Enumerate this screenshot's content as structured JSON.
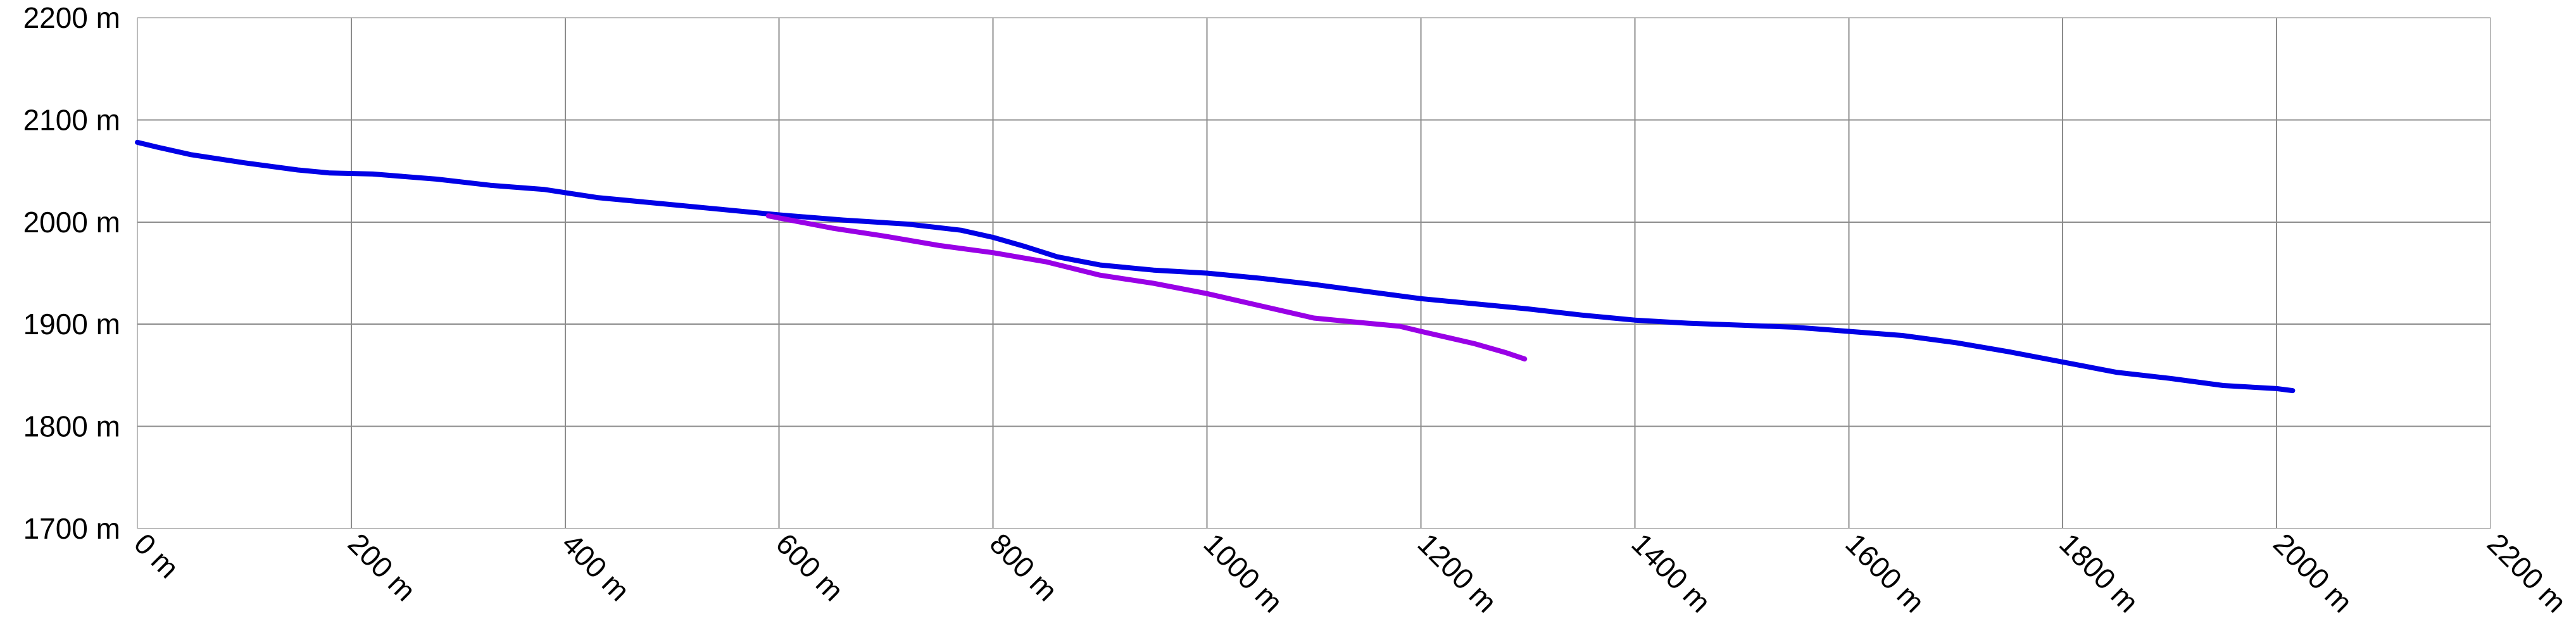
{
  "chart_data": {
    "type": "line",
    "title": "",
    "xlabel": "",
    "ylabel": "",
    "xlim": [
      0,
      2200
    ],
    "ylim": [
      1700,
      2200
    ],
    "x_ticks": [
      0,
      200,
      400,
      600,
      800,
      1000,
      1200,
      1400,
      1600,
      1800,
      2000,
      2200
    ],
    "y_ticks": [
      1700,
      1800,
      1900,
      2000,
      2100,
      2200
    ],
    "x_tick_labels": [
      "0 m",
      "200 m",
      "400 m",
      "600 m",
      "800 m",
      "1000 m",
      "1200 m",
      "1400 m",
      "1600 m",
      "1800 m",
      "2000 m",
      "2200 m"
    ],
    "y_tick_labels": [
      "1700 m",
      "1800 m",
      "1900 m",
      "2000 m",
      "2100 m",
      "2200 m"
    ],
    "grid": true,
    "legend": "none",
    "series": [
      {
        "color": "#0000e6",
        "points": [
          [
            0,
            2078
          ],
          [
            20,
            2073
          ],
          [
            50,
            2066
          ],
          [
            100,
            2058
          ],
          [
            150,
            2051
          ],
          [
            180,
            2048
          ],
          [
            220,
            2047
          ],
          [
            280,
            2042
          ],
          [
            330,
            2036
          ],
          [
            380,
            2032
          ],
          [
            430,
            2024
          ],
          [
            480,
            2019
          ],
          [
            540,
            2013
          ],
          [
            600,
            2007
          ],
          [
            660,
            2002
          ],
          [
            720,
            1998
          ],
          [
            770,
            1992
          ],
          [
            800,
            1985
          ],
          [
            830,
            1976
          ],
          [
            860,
            1966
          ],
          [
            900,
            1958
          ],
          [
            950,
            1953
          ],
          [
            1000,
            1950
          ],
          [
            1050,
            1945
          ],
          [
            1100,
            1939
          ],
          [
            1150,
            1932
          ],
          [
            1200,
            1925
          ],
          [
            1250,
            1920
          ],
          [
            1300,
            1915
          ],
          [
            1350,
            1909
          ],
          [
            1400,
            1904
          ],
          [
            1450,
            1901
          ],
          [
            1500,
            1899
          ],
          [
            1550,
            1897
          ],
          [
            1600,
            1893
          ],
          [
            1650,
            1889
          ],
          [
            1700,
            1882
          ],
          [
            1750,
            1873
          ],
          [
            1800,
            1863
          ],
          [
            1850,
            1853
          ],
          [
            1900,
            1847
          ],
          [
            1950,
            1840
          ],
          [
            2000,
            1837
          ],
          [
            2015,
            1835
          ]
        ]
      },
      {
        "color": "#9900e6",
        "points": [
          [
            590,
            2006
          ],
          [
            620,
            2000
          ],
          [
            650,
            1994
          ],
          [
            700,
            1986
          ],
          [
            750,
            1977
          ],
          [
            800,
            1970
          ],
          [
            850,
            1961
          ],
          [
            900,
            1948
          ],
          [
            950,
            1940
          ],
          [
            1000,
            1930
          ],
          [
            1050,
            1918
          ],
          [
            1100,
            1906
          ],
          [
            1150,
            1901
          ],
          [
            1180,
            1898
          ],
          [
            1200,
            1893
          ],
          [
            1250,
            1881
          ],
          [
            1280,
            1872
          ],
          [
            1297,
            1866
          ]
        ]
      }
    ]
  }
}
